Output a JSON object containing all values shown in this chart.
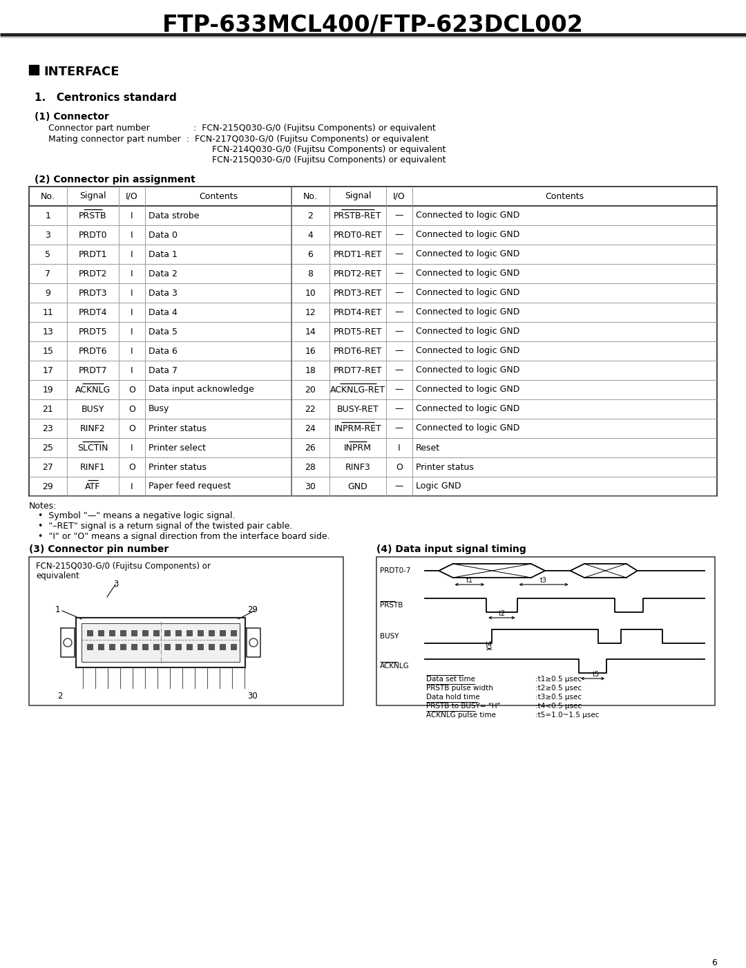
{
  "title": "FTP-633MCL400/FTP-623DCL002",
  "table_headers": [
    "No.",
    "Signal",
    "I/O",
    "Contents",
    "No.",
    "Signal",
    "I/O",
    "Contents"
  ],
  "table_rows": [
    [
      "1",
      "PRSTB",
      "I",
      "Data strobe",
      "2",
      "PRSTB-RET",
      "—",
      "Connected to logic GND"
    ],
    [
      "3",
      "PRDT0",
      "I",
      "Data 0",
      "4",
      "PRDT0-RET",
      "—",
      "Connected to logic GND"
    ],
    [
      "5",
      "PRDT1",
      "I",
      "Data 1",
      "6",
      "PRDT1-RET",
      "—",
      "Connected to logic GND"
    ],
    [
      "7",
      "PRDT2",
      "I",
      "Data 2",
      "8",
      "PRDT2-RET",
      "—",
      "Connected to logic GND"
    ],
    [
      "9",
      "PRDT3",
      "I",
      "Data 3",
      "10",
      "PRDT3-RET",
      "—",
      "Connected to logic GND"
    ],
    [
      "11",
      "PRDT4",
      "I",
      "Data 4",
      "12",
      "PRDT4-RET",
      "—",
      "Connected to logic GND"
    ],
    [
      "13",
      "PRDT5",
      "I",
      "Data 5",
      "14",
      "PRDT5-RET",
      "—",
      "Connected to logic GND"
    ],
    [
      "15",
      "PRDT6",
      "I",
      "Data 6",
      "16",
      "PRDT6-RET",
      "—",
      "Connected to logic GND"
    ],
    [
      "17",
      "PRDT7",
      "I",
      "Data 7",
      "18",
      "PRDT7-RET",
      "—",
      "Connected to logic GND"
    ],
    [
      "19",
      "ACKNLG",
      "O",
      "Data input acknowledge",
      "20",
      "ACKNLG-RET",
      "—",
      "Connected to logic GND"
    ],
    [
      "21",
      "BUSY",
      "O",
      "Busy",
      "22",
      "BUSY-RET",
      "—",
      "Connected to logic GND"
    ],
    [
      "23",
      "RINF2",
      "O",
      "Printer status",
      "24",
      "INPRM-RET",
      "—",
      "Connected to logic GND"
    ],
    [
      "25",
      "SLCTIN",
      "I",
      "Printer select",
      "26",
      "INPRM",
      "I",
      "Reset"
    ],
    [
      "27",
      "RINF1",
      "O",
      "Printer status",
      "28",
      "RINF3",
      "O",
      "Printer status"
    ],
    [
      "29",
      "ATF",
      "I",
      "Paper feed request",
      "30",
      "GND",
      "—",
      "Logic GND"
    ]
  ],
  "overline_left": [
    "PRSTB",
    "ACKNLG",
    "SLCTIN",
    "ATF"
  ],
  "overline_right": [
    "PRSTB-RET",
    "ACKNLG-RET",
    "INPRM-RET",
    "INPRM"
  ],
  "notes": [
    "Symbol \"—\" means a negative logic signal.",
    "\"–RET\" signal is a return signal of the twisted pair cable.",
    "\"I\" or \"O\" means a signal direction from the interface board side."
  ],
  "timing_params_left": [
    "Data set time",
    "PRSTB pulse width",
    "Data hold time",
    "PRSTB to BUSY= “H”",
    "ACKNLG pulse time"
  ],
  "timing_params_right": [
    ":t1≥0.5 μsec",
    ":t2≥0.5 μsec",
    ":t3≥0.5 μsec",
    ":t4<0.5 μsec",
    ":t5=1.0~1.5 μsec"
  ],
  "timing_overline": [
    "Data set time",
    "PRSTB pulse width",
    "PRSTB to BUSY= “H”",
    "ACKNLG pulse time"
  ],
  "page_number": "6"
}
